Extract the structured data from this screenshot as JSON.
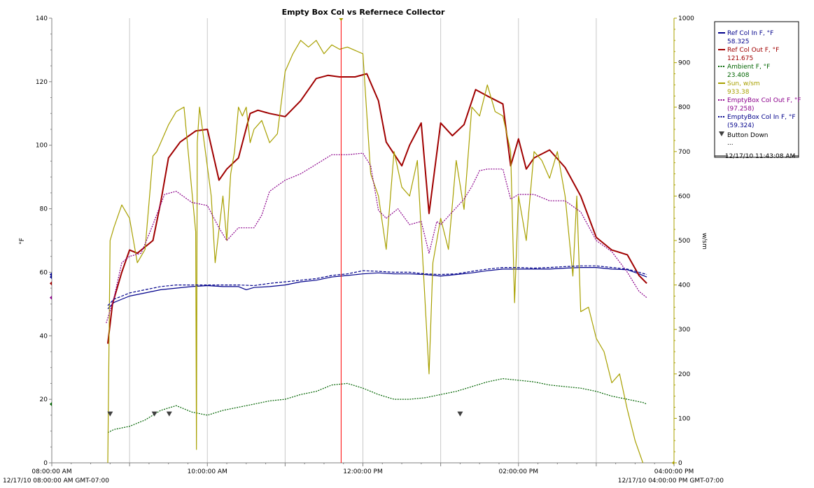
{
  "chart_data": {
    "type": "line",
    "title": "Empty Box Col vs Refernece Collector",
    "ylabel_left": "°F",
    "ylabel_right": "w/sm",
    "y_left_range": [
      0,
      140
    ],
    "y_left_ticks": [
      "0",
      "20",
      "40",
      "60",
      "80",
      "100",
      "120",
      "140"
    ],
    "y_right_range": [
      0,
      1000
    ],
    "y_right_ticks": [
      "0",
      "100",
      "200",
      "300",
      "400",
      "500",
      "600",
      "700",
      "800",
      "900",
      "1000"
    ],
    "x_range_hours": [
      8,
      16
    ],
    "x_ticks": [
      {
        "hour": 10,
        "label": "10:00:00 AM"
      },
      {
        "hour": 12,
        "label": "12:00:00 PM"
      },
      {
        "hour": 14,
        "label": "02:00:00 PM"
      }
    ],
    "x_start_label": "08:00:00 AM",
    "x_end_label": "04:00:00 PM",
    "x_start_full": "12/17/10 08:00:00 AM GMT-07:00",
    "x_end_full": "12/17/10 04:00:00 PM GMT-07:00",
    "cursor": {
      "hour": 11.72,
      "label": "12/17/10 11:43:08 AM",
      "color": "#ff0000"
    },
    "grid": true,
    "legend_position": "right",
    "button_down_marks": [
      8.75,
      9.32,
      9.51,
      13.25
    ],
    "series": [
      {
        "name": "Ref Col In F, °F",
        "value": "58.325",
        "color": "#00008b",
        "axis": "left",
        "style": "solid",
        "x": [
          8.72,
          8.8,
          8.9,
          9.0,
          9.2,
          9.4,
          9.6,
          9.8,
          10.0,
          10.2,
          10.4,
          10.5,
          10.6,
          10.8,
          11.0,
          11.2,
          11.4,
          11.6,
          11.8,
          12.0,
          12.2,
          12.4,
          12.6,
          12.8,
          13.0,
          13.2,
          13.4,
          13.6,
          13.8,
          14.0,
          14.2,
          14.4,
          14.6,
          14.8,
          15.0,
          15.2,
          15.4,
          15.55,
          15.65
        ],
        "y": [
          48.5,
          50.5,
          51.5,
          52.5,
          53.5,
          54.5,
          55,
          55.5,
          55.8,
          55.5,
          55.5,
          54.5,
          55.2,
          55.5,
          56,
          57,
          57.5,
          58.5,
          59,
          59.5,
          59.8,
          59.5,
          59.5,
          59.3,
          58.8,
          59.3,
          59.8,
          60.5,
          61,
          61,
          61,
          61,
          61.3,
          61.5,
          61.5,
          61,
          60.8,
          59.5,
          58.5
        ]
      },
      {
        "name": "Ref Col Out F, °F",
        "value": "121.675",
        "color": "#a00000",
        "axis": "left",
        "style": "solid",
        "x": [
          8.72,
          8.78,
          8.9,
          9.0,
          9.1,
          9.3,
          9.4,
          9.5,
          9.65,
          9.85,
          10.0,
          10.15,
          10.25,
          10.4,
          10.55,
          10.65,
          10.8,
          11.0,
          11.2,
          11.4,
          11.55,
          11.7,
          11.9,
          12.05,
          12.2,
          12.3,
          12.5,
          12.6,
          12.75,
          12.85,
          13.0,
          13.15,
          13.3,
          13.45,
          13.6,
          13.8,
          13.9,
          14.0,
          14.1,
          14.2,
          14.4,
          14.6,
          14.8,
          15.0,
          15.2,
          15.4,
          15.55,
          15.65
        ],
        "y": [
          37.5,
          50,
          60,
          67,
          66,
          70,
          82,
          96,
          101,
          104.5,
          105,
          89,
          92.5,
          96,
          110,
          111,
          110,
          109,
          114,
          121,
          122,
          121.5,
          121.5,
          122.5,
          114,
          101,
          93.5,
          100,
          107,
          78.5,
          107,
          103,
          106.5,
          117.5,
          115.5,
          113,
          93.5,
          102,
          92.5,
          96,
          98.5,
          93,
          84,
          71,
          67,
          65.5,
          59,
          56.5
        ]
      },
      {
        "name": "Ambient F, °F",
        "value": "23.408",
        "color": "#006400",
        "axis": "left",
        "style": "dotted",
        "x": [
          8.72,
          8.8,
          9.0,
          9.2,
          9.4,
          9.6,
          9.8,
          10.0,
          10.2,
          10.4,
          10.6,
          10.8,
          11.0,
          11.2,
          11.4,
          11.6,
          11.8,
          12.0,
          12.2,
          12.4,
          12.6,
          12.8,
          13.0,
          13.2,
          13.4,
          13.6,
          13.8,
          14.0,
          14.2,
          14.4,
          14.6,
          14.8,
          15.0,
          15.2,
          15.4,
          15.6,
          15.65
        ],
        "y": [
          9.5,
          10.5,
          11.5,
          13.5,
          16.5,
          18,
          16,
          15,
          16.5,
          17.5,
          18.5,
          19.5,
          20,
          21.5,
          22.5,
          24.5,
          25,
          23.5,
          21.5,
          20,
          20,
          20.5,
          21.5,
          22.5,
          24,
          25.5,
          26.5,
          26,
          25.5,
          24.5,
          24,
          23.5,
          22.5,
          21,
          20,
          19,
          18.5
        ]
      },
      {
        "name": "Sun, w/sm",
        "value": "933.38",
        "color": "#a8a000",
        "axis": "right",
        "style": "solid",
        "x": [
          8.72,
          8.75,
          8.8,
          8.9,
          9.0,
          9.1,
          9.2,
          9.3,
          9.35,
          9.4,
          9.5,
          9.6,
          9.7,
          9.85,
          9.86,
          9.87,
          9.9,
          10.05,
          10.1,
          10.2,
          10.25,
          10.3,
          10.35,
          10.4,
          10.45,
          10.5,
          10.55,
          10.6,
          10.7,
          10.8,
          10.9,
          11.0,
          11.1,
          11.2,
          11.3,
          11.4,
          11.5,
          11.6,
          11.7,
          11.8,
          12.0,
          12.1,
          12.2,
          12.3,
          12.4,
          12.5,
          12.6,
          12.7,
          12.8,
          12.85,
          12.9,
          13.0,
          13.1,
          13.2,
          13.3,
          13.4,
          13.5,
          13.6,
          13.7,
          13.8,
          13.9,
          13.95,
          14.0,
          14.1,
          14.2,
          14.3,
          14.4,
          14.5,
          14.6,
          14.7,
          14.75,
          14.8,
          14.9,
          15.0,
          15.1,
          15.2,
          15.3,
          15.4,
          15.5,
          15.6
        ],
        "y": [
          0,
          500,
          530,
          580,
          550,
          450,
          480,
          690,
          700,
          720,
          760,
          790,
          800,
          520,
          30,
          720,
          800,
          600,
          450,
          600,
          500,
          650,
          700,
          800,
          780,
          800,
          720,
          750,
          770,
          720,
          740,
          880,
          920,
          950,
          935,
          950,
          920,
          940,
          930,
          935,
          920,
          650,
          600,
          480,
          700,
          620,
          600,
          680,
          360,
          200,
          450,
          550,
          480,
          680,
          570,
          800,
          780,
          850,
          790,
          780,
          700,
          360,
          600,
          500,
          700,
          680,
          640,
          700,
          600,
          420,
          600,
          340,
          350,
          280,
          250,
          180,
          200,
          120,
          50,
          0
        ]
      },
      {
        "name": "EmptyBox Col Out F, °F",
        "value": "(97.258)",
        "color": "#8b008b",
        "axis": "left",
        "style": "dotted",
        "x": [
          8.7,
          8.8,
          8.9,
          9.0,
          9.15,
          9.3,
          9.45,
          9.6,
          9.8,
          10.0,
          10.15,
          10.25,
          10.4,
          10.6,
          10.7,
          10.8,
          11.0,
          11.2,
          11.4,
          11.6,
          11.8,
          12.0,
          12.1,
          12.2,
          12.3,
          12.45,
          12.6,
          12.75,
          12.85,
          12.95,
          13.0,
          13.15,
          13.3,
          13.4,
          13.5,
          13.6,
          13.8,
          13.9,
          14.0,
          14.2,
          14.4,
          14.6,
          14.8,
          15.0,
          15.2,
          15.4,
          15.55,
          15.65
        ],
        "y": [
          44,
          52,
          63,
          65,
          66,
          75,
          84.5,
          85.5,
          82,
          81,
          74,
          70,
          74,
          74,
          78,
          85.5,
          89,
          91,
          94,
          97,
          97,
          97.5,
          93.5,
          79.5,
          77,
          80,
          75,
          76,
          66,
          76,
          75,
          79,
          83,
          87,
          92,
          92.5,
          92.5,
          83,
          84.5,
          84.5,
          82.5,
          82.5,
          79,
          70,
          66.5,
          60,
          54,
          52
        ]
      },
      {
        "name": "EmptyBox Col In F, °F",
        "value": "(59.324)",
        "color": "#00008b",
        "axis": "left",
        "style": "dashed",
        "x": [
          8.72,
          8.8,
          8.9,
          9.0,
          9.2,
          9.4,
          9.6,
          9.8,
          10.0,
          10.2,
          10.4,
          10.6,
          10.8,
          11.0,
          11.2,
          11.4,
          11.6,
          11.8,
          12.0,
          12.2,
          12.4,
          12.6,
          12.8,
          13.0,
          13.2,
          13.4,
          13.6,
          13.8,
          14.0,
          14.2,
          14.4,
          14.6,
          14.8,
          15.0,
          15.2,
          15.4,
          15.55,
          15.65
        ],
        "y": [
          49.5,
          51.5,
          52.5,
          53.5,
          54.5,
          55.5,
          56,
          56,
          56,
          56,
          56,
          55.8,
          56.5,
          57,
          57.5,
          58,
          59,
          59.5,
          60.5,
          60.3,
          60,
          60,
          59.5,
          59.3,
          59.5,
          60.3,
          61,
          61.5,
          61.5,
          61.3,
          61.5,
          61.8,
          62,
          62,
          61.5,
          61,
          60,
          59.3
        ]
      }
    ]
  },
  "legend": {
    "items": [
      {
        "name": "Ref Col In F, °F",
        "value": "58.325",
        "color": "#00008b",
        "style": "solid"
      },
      {
        "name": "Ref Col Out F, °F",
        "value": "121.675",
        "color": "#a00000",
        "style": "solid"
      },
      {
        "name": "Ambient F, °F",
        "value": "23.408",
        "color": "#006400",
        "style": "dotted"
      },
      {
        "name": "Sun, w/sm",
        "value": "933.38",
        "color": "#a8a000",
        "style": "solid"
      },
      {
        "name": "EmptyBox Col Out F, °F",
        "value": "(97.258)",
        "color": "#8b008b",
        "style": "dotted"
      },
      {
        "name": "EmptyBox Col In F, °F",
        "value": "(59.324)",
        "color": "#00008b",
        "style": "dotted"
      }
    ],
    "button_down_label": "Button Down",
    "ellipsis": "...",
    "timestamp": "12/17/10 11:43:08 AM"
  }
}
